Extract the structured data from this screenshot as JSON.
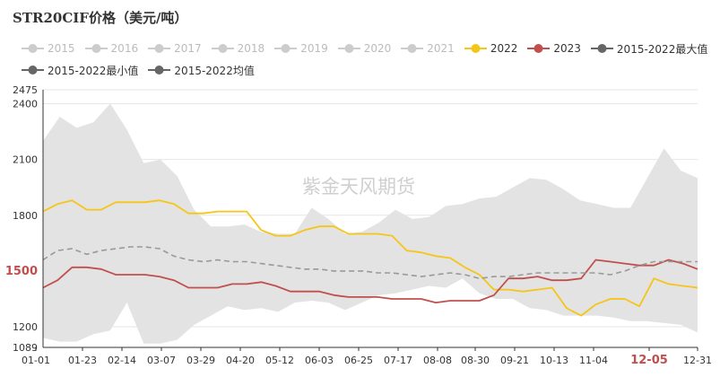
{
  "title": "STR20CIF价格（美元/吨）",
  "watermark": "紫金天风期货",
  "legend": [
    {
      "label": "2015",
      "color": "#cccccc",
      "inactive": true
    },
    {
      "label": "2016",
      "color": "#cccccc",
      "inactive": true
    },
    {
      "label": "2017",
      "color": "#cccccc",
      "inactive": true
    },
    {
      "label": "2018",
      "color": "#cccccc",
      "inactive": true
    },
    {
      "label": "2019",
      "color": "#cccccc",
      "inactive": true
    },
    {
      "label": "2020",
      "color": "#cccccc",
      "inactive": true
    },
    {
      "label": "2021",
      "color": "#cccccc",
      "inactive": true
    },
    {
      "label": "2022",
      "color": "#f5c518",
      "inactive": false
    },
    {
      "label": "2023",
      "color": "#c0504d",
      "inactive": false
    },
    {
      "label": "2015-2022最大值",
      "color": "#666666",
      "inactive": false
    },
    {
      "label": "2015-2022最小值",
      "color": "#666666",
      "inactive": false
    },
    {
      "label": "2015-2022均值",
      "color": "#666666",
      "inactive": false
    }
  ],
  "chart_data": {
    "type": "line",
    "ylim": [
      1089,
      2475
    ],
    "y_ticks": [
      1089,
      1200,
      1500,
      1800,
      2100,
      2400,
      2475
    ],
    "y_highlight": {
      "value": 1500,
      "label": "1500",
      "color": "#c0504d"
    },
    "x_ticks": [
      "01-01",
      "01-23",
      "02-14",
      "03-07",
      "03-29",
      "04-20",
      "05-12",
      "06-03",
      "06-25",
      "07-17",
      "08-08",
      "08-30",
      "09-21",
      "10-13",
      "11-04",
      "12-05",
      "12-31"
    ],
    "x_highlight": {
      "label": "12-05",
      "color": "#c0504d"
    },
    "band": {
      "name": "2015-2022最大值/最小值",
      "color": "#e3e3e3",
      "max": [
        2200,
        2330,
        2270,
        2300,
        2400,
        2260,
        2080,
        2100,
        2010,
        1830,
        1740,
        1740,
        1750,
        1710,
        1700,
        1700,
        1840,
        1780,
        1700,
        1710,
        1760,
        1830,
        1780,
        1790,
        1850,
        1860,
        1890,
        1900,
        1950,
        2000,
        1990,
        1940,
        1880,
        1860,
        1840,
        1840,
        2000,
        2160,
        2040,
        2000
      ],
      "min": [
        1140,
        1120,
        1120,
        1160,
        1180,
        1330,
        1110,
        1110,
        1130,
        1210,
        1260,
        1310,
        1290,
        1300,
        1280,
        1330,
        1340,
        1330,
        1290,
        1330,
        1370,
        1380,
        1400,
        1420,
        1410,
        1460,
        1380,
        1350,
        1350,
        1300,
        1290,
        1260,
        1260,
        1260,
        1250,
        1230,
        1230,
        1220,
        1210,
        1170
      ]
    },
    "series": [
      {
        "name": "2022",
        "color": "#f5c518",
        "dash": false,
        "values": [
          1820,
          1860,
          1880,
          1830,
          1830,
          1870,
          1870,
          1870,
          1880,
          1860,
          1810,
          1810,
          1820,
          1820,
          1820,
          1720,
          1690,
          1690,
          1720,
          1740,
          1740,
          1700,
          1700,
          1700,
          1690,
          1610,
          1600,
          1580,
          1570,
          1520,
          1480,
          1400,
          1400,
          1390,
          1400,
          1410,
          1300,
          1260,
          1320,
          1350,
          1350,
          1310,
          1460,
          1430,
          1420,
          1410
        ]
      },
      {
        "name": "2023",
        "color": "#c0504d",
        "dash": false,
        "values": [
          1410,
          1450,
          1520,
          1520,
          1510,
          1480,
          1480,
          1480,
          1470,
          1450,
          1410,
          1410,
          1410,
          1430,
          1430,
          1440,
          1420,
          1390,
          1390,
          1390,
          1370,
          1360,
          1360,
          1360,
          1350,
          1350,
          1350,
          1330,
          1340,
          1340,
          1340,
          1370,
          1460,
          1460,
          1470,
          1450,
          1450,
          1460,
          1560,
          1550,
          1540,
          1530,
          1530,
          1560,
          1540,
          1510
        ]
      },
      {
        "name": "2015-2022均值",
        "color": "#999999",
        "dash": true,
        "values": [
          1560,
          1610,
          1620,
          1590,
          1610,
          1620,
          1630,
          1630,
          1620,
          1580,
          1560,
          1550,
          1560,
          1550,
          1550,
          1540,
          1530,
          1520,
          1510,
          1510,
          1500,
          1500,
          1500,
          1490,
          1490,
          1480,
          1470,
          1480,
          1490,
          1480,
          1460,
          1470,
          1470,
          1480,
          1490,
          1490,
          1490,
          1490,
          1490,
          1480,
          1500,
          1530,
          1550,
          1550,
          1550,
          1550
        ]
      }
    ]
  }
}
